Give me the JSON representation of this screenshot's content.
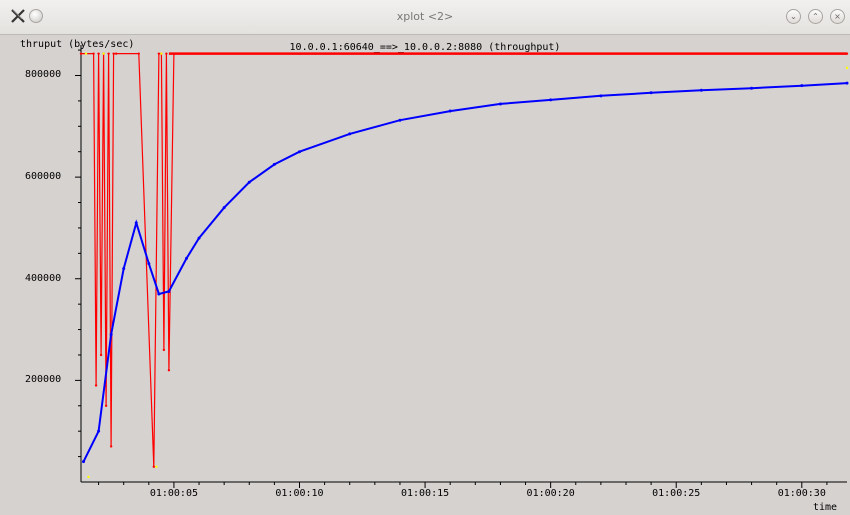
{
  "window": {
    "title": "xplot <2>",
    "buttons": [
      "minimize",
      "maximize",
      "close"
    ]
  },
  "plot": {
    "title": "10.0.0.1:60640_==>_10.0.0.2:8080 (throughput)",
    "ylabel": "thruput (bytes/sec)",
    "xlabel": "time"
  },
  "chart_data": {
    "type": "line",
    "ylim": [
      0,
      860000
    ],
    "xlim": [
      "01:00:01.3",
      "01:00:31.8"
    ],
    "y_ticks": [
      {
        "value": 200000,
        "label": "200000"
      },
      {
        "value": 400000,
        "label": "400000"
      },
      {
        "value": 600000,
        "label": "600000"
      },
      {
        "value": 800000,
        "label": "800000"
      }
    ],
    "x_ticks": [
      {
        "value": "01:00:05",
        "label": "01:00:05"
      },
      {
        "value": "01:00:10",
        "label": "01:00:10"
      },
      {
        "value": "01:00:15",
        "label": "01:00:15"
      },
      {
        "value": "01:00:20",
        "label": "01:00:20"
      },
      {
        "value": "01:00:25",
        "label": "01:00:25"
      },
      {
        "value": "01:00:30",
        "label": "01:00:30"
      }
    ],
    "series": [
      {
        "color": "#ff0000",
        "x": [
          "01:00:01.3",
          "01:00:01.8",
          "01:00:01.9",
          "01:00:02.0",
          "01:00:02.1",
          "01:00:02.2",
          "01:00:02.3",
          "01:00:02.4",
          "01:00:02.5",
          "01:00:02.6",
          "01:00:02.7",
          "01:00:03.6",
          "01:00:04.2",
          "01:00:04.4",
          "01:00:04.5",
          "01:00:04.6",
          "01:00:04.7",
          "01:00:04.8",
          "01:00:05",
          "01:00:10",
          "01:00:20",
          "01:00:31.8"
        ],
        "y": [
          843000,
          843000,
          190000,
          843000,
          250000,
          843000,
          150000,
          843000,
          70000,
          843000,
          843000,
          843000,
          30000,
          843000,
          843000,
          260000,
          843000,
          220000,
          843000,
          843000,
          843000,
          843000
        ]
      },
      {
        "color": "#0000ff",
        "x": [
          "01:00:01.4",
          "01:00:02.0",
          "01:00:02.5",
          "01:00:03.0",
          "01:00:03.5",
          "01:00:04.0",
          "01:00:04.4",
          "01:00:04.8",
          "01:00:05.5",
          "01:00:06",
          "01:00:07",
          "01:00:08",
          "01:00:09",
          "01:00:10",
          "01:00:12",
          "01:00:14",
          "01:00:16",
          "01:00:18",
          "01:00:20",
          "01:00:22",
          "01:00:24",
          "01:00:26",
          "01:00:28",
          "01:00:30",
          "01:00:31.8"
        ],
        "y": [
          40000,
          100000,
          290000,
          420000,
          510000,
          430000,
          370000,
          375000,
          440000,
          480000,
          540000,
          590000,
          625000,
          650000,
          685000,
          712000,
          730000,
          744000,
          752000,
          760000,
          766000,
          771000,
          775000,
          780000,
          785000
        ]
      }
    ],
    "grid": false
  }
}
